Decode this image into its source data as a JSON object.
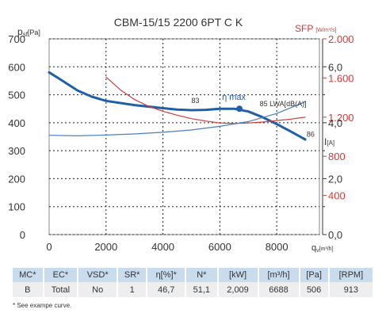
{
  "chart_data": {
    "type": "line",
    "title": "CBM-15/15 2200 6PT C K",
    "xlabel": "q",
    "xlabel_sub": "v",
    "xunit": "[m³/h]",
    "xlim": [
      0,
      9500
    ],
    "xticks": [
      0,
      2000,
      4000,
      6000,
      8000
    ],
    "xticklabels": [
      "0",
      "2000",
      "4000",
      "6000",
      "8000"
    ],
    "left_axis": {
      "label": "p",
      "label_sub": "sf",
      "unit": "[Pa]",
      "ylim": [
        0,
        700
      ],
      "ticks": [
        0,
        100,
        200,
        300,
        400,
        500,
        600,
        700
      ],
      "ticklabels": [
        "0",
        "100",
        "200",
        "300",
        "400",
        "500",
        "600",
        "700"
      ]
    },
    "right_axis_sfp": {
      "label": "SFP",
      "unit": "[W/m³/s]",
      "ylim": [
        0,
        2000
      ],
      "ticks": [
        400,
        800,
        1200,
        1600,
        2000
      ],
      "ticklabels": [
        "400",
        "800",
        "1.200",
        "1.600",
        "2.000"
      ],
      "color": "#d23b3b"
    },
    "right_axis_current": {
      "label": "I",
      "unit": "[A]",
      "ylim": [
        0,
        7
      ],
      "ticks": [
        0,
        2,
        4,
        6
      ],
      "ticklabels": [
        "0,0",
        "2,0",
        "4,0",
        "6,0"
      ]
    },
    "series": [
      {
        "role": "pressure",
        "axis": "left",
        "color": "#1f5fa8",
        "x": [
          0,
          500,
          1000,
          1500,
          2000,
          3000,
          4000,
          4500,
          5000,
          5500,
          6000,
          6500,
          7000,
          7500,
          8000,
          8500,
          9000
        ],
        "y": [
          580,
          548,
          515,
          493,
          478,
          463,
          452,
          447,
          445,
          446,
          450,
          450,
          440,
          420,
          395,
          368,
          340
        ]
      },
      {
        "role": "sfp",
        "axis": "right_sfp",
        "color": "#d23b3b",
        "x": [
          2000,
          2500,
          3000,
          3500,
          4000,
          4500,
          5000,
          5500,
          6000,
          6500,
          7000,
          7500,
          8000,
          8500,
          9000
        ],
        "y": [
          1610,
          1480,
          1380,
          1310,
          1260,
          1220,
          1185,
          1160,
          1140,
          1135,
          1140,
          1150,
          1165,
          1180,
          1200
        ]
      },
      {
        "role": "current",
        "axis": "right_current",
        "color": "#4a7ebf",
        "x": [
          0,
          1000,
          2000,
          3000,
          4000,
          5000,
          6000,
          7000,
          8000,
          9000
        ],
        "y": [
          3.55,
          3.53,
          3.56,
          3.6,
          3.66,
          3.74,
          3.87,
          4.04,
          4.33,
          4.75
        ]
      }
    ],
    "operating_point": {
      "x": 6688,
      "y": 450,
      "label": "η max",
      "color": "#1f5fa8"
    },
    "annotations": [
      {
        "text": "83",
        "x": 5000,
        "y": 470
      },
      {
        "text": "85 LWA[dB(A)]",
        "x": 7400,
        "y": 459
      },
      {
        "text": "86",
        "x": 9050,
        "y": 350
      }
    ],
    "grid": true
  },
  "table": {
    "headers": [
      "MC*",
      "EC*",
      "VSD*",
      "SR*",
      "η[%]*",
      "N*",
      "[kW]",
      "[m³/h]",
      "[Pa]",
      "[RPM]"
    ],
    "rows": [
      [
        "B",
        "Total",
        "No",
        "1",
        "46,7",
        "51,1",
        "2,009",
        "6688",
        "506",
        "913"
      ]
    ]
  },
  "footnote": "* See exampe curve."
}
